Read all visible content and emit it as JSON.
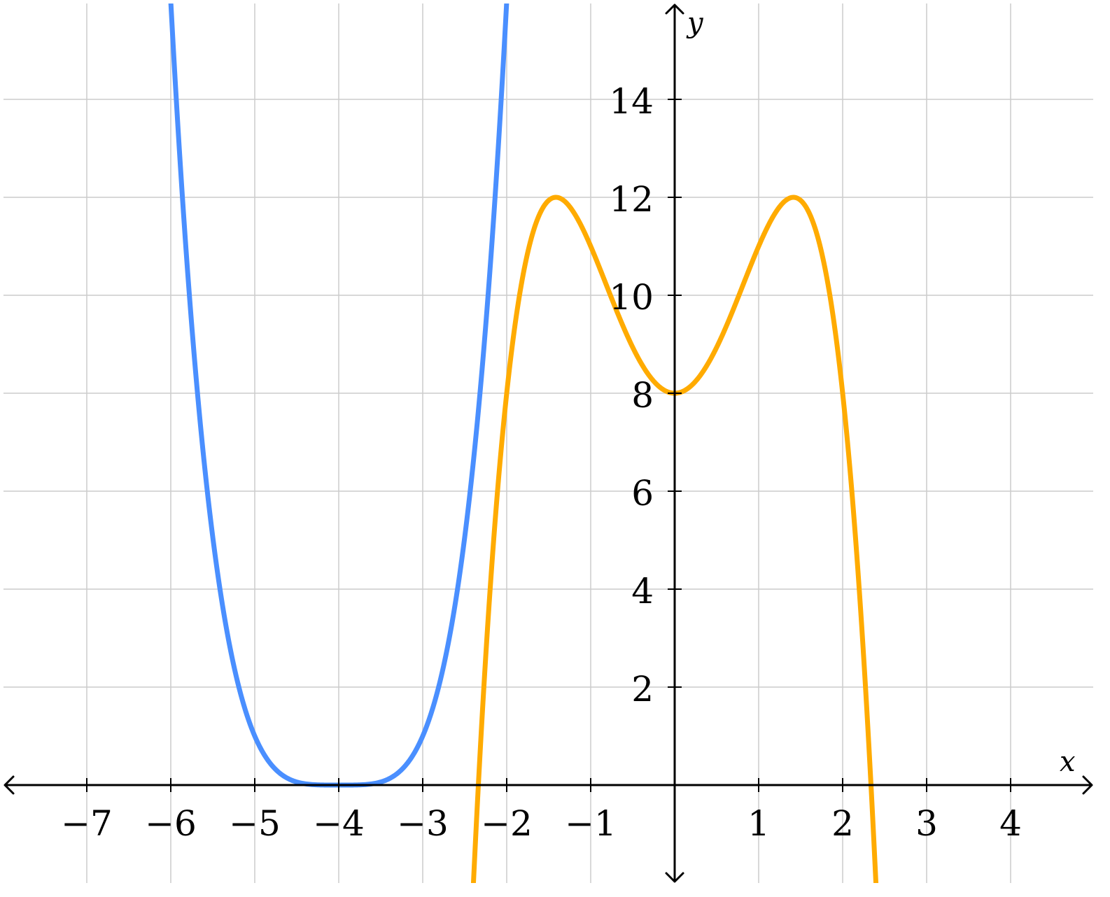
{
  "chart_data": {
    "type": "line",
    "title": "",
    "xlabel": "x",
    "ylabel": "y",
    "xlim": [
      -8,
      5
    ],
    "ylim": [
      -2,
      16
    ],
    "grid": true,
    "x_ticks": [
      -7,
      -6,
      -5,
      -4,
      -3,
      -2,
      -1,
      1,
      2,
      3,
      4
    ],
    "x_tick_labels": [
      "−7",
      "−6",
      "−5",
      "−4",
      "−3",
      "−2",
      "−1",
      "1",
      "2",
      "3",
      "4"
    ],
    "y_ticks": [
      2,
      4,
      6,
      8,
      10,
      12,
      14
    ],
    "y_tick_labels": [
      "2",
      "4",
      "6",
      "8",
      "10",
      "12",
      "14"
    ],
    "series": [
      {
        "color": "#4a8fff",
        "points": [
          [
            -6,
            16
          ],
          [
            -5.5,
            5.06
          ],
          [
            -5,
            1
          ],
          [
            -4.5,
            0.06
          ],
          [
            -4,
            0
          ],
          [
            -3.5,
            0.06
          ],
          [
            -3,
            1
          ],
          [
            -2.5,
            5.06
          ],
          [
            -2,
            16
          ]
        ]
      },
      {
        "color": "#ffab00",
        "points": [
          [
            -2.4,
            -2.14
          ],
          [
            -2.3,
            1.17
          ],
          [
            -2,
            8
          ],
          [
            -1.75,
            10.88
          ],
          [
            -1.414,
            12
          ],
          [
            -1,
            11
          ],
          [
            -0.5,
            8.94
          ],
          [
            0,
            8
          ],
          [
            0.5,
            8.94
          ],
          [
            1,
            11
          ],
          [
            1.414,
            12
          ],
          [
            1.75,
            10.88
          ],
          [
            2,
            8
          ],
          [
            2.3,
            1.17
          ],
          [
            2.4,
            -2.14
          ]
        ]
      }
    ]
  }
}
